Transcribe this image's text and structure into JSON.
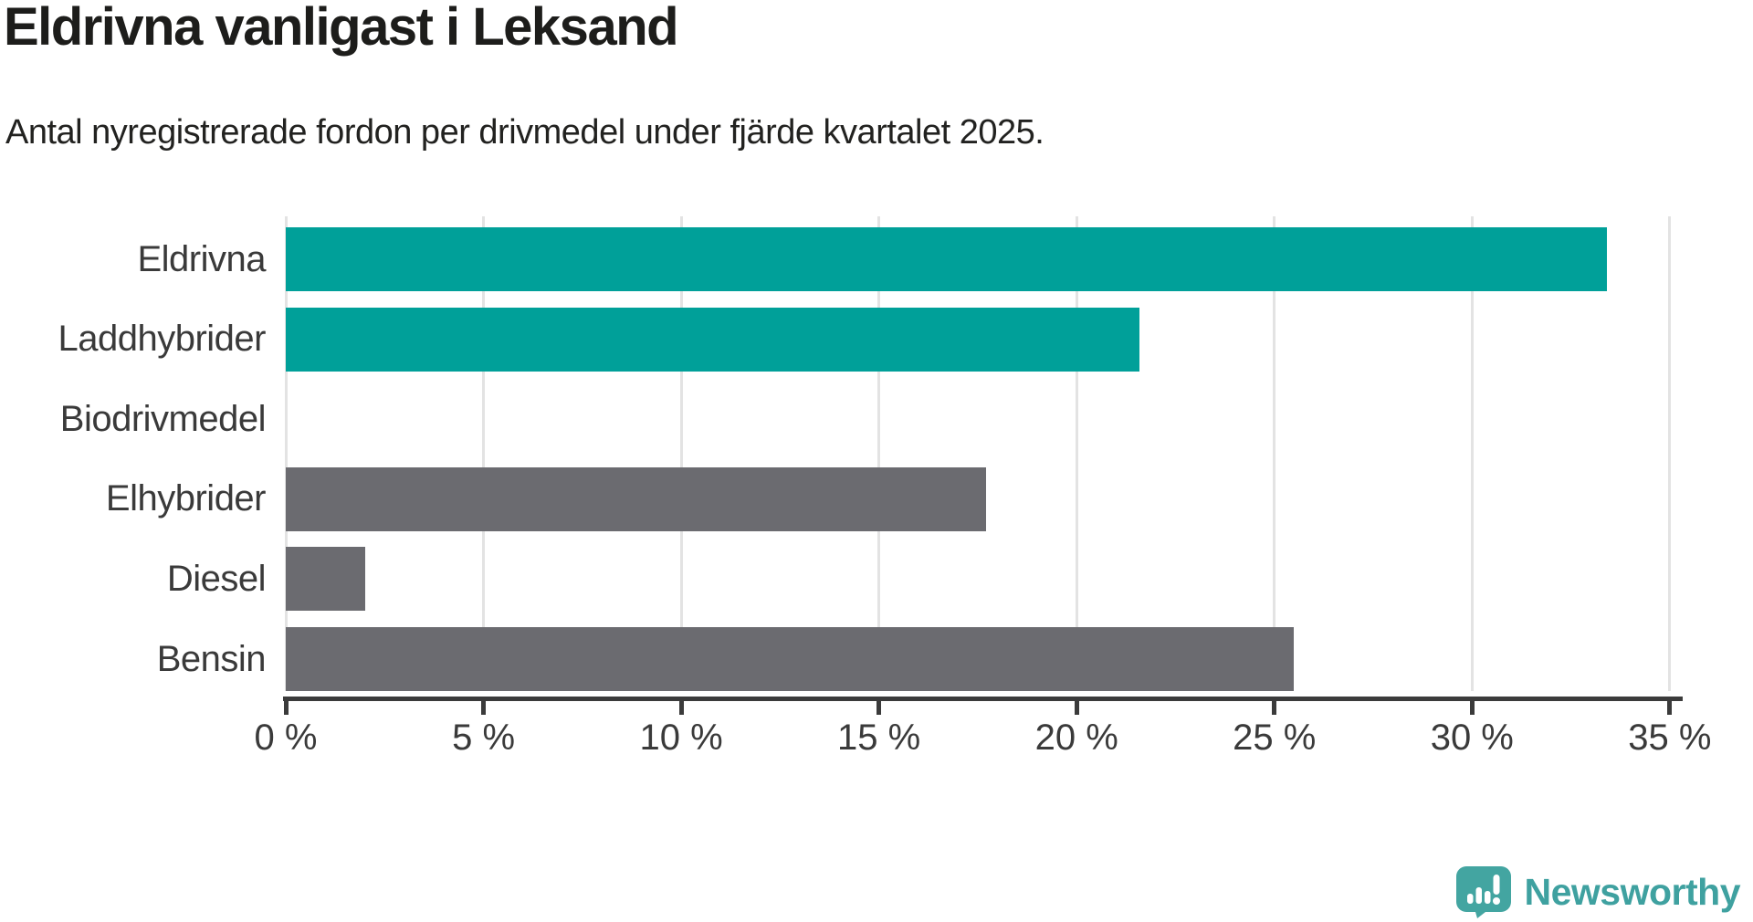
{
  "header": {
    "title": "Eldrivna vanligast i Leksand",
    "subtitle": "Antal nyregistrerade fordon per drivmedel under fjärde kvartalet 2025."
  },
  "chart_data": {
    "type": "bar",
    "orientation": "horizontal",
    "title": "Eldrivna vanligast i Leksand",
    "subtitle": "Antal nyregistrerade fordon per drivmedel under fjärde kvartalet 2025.",
    "categories": [
      "Eldrivna",
      "Laddhybrider",
      "Biodrivmedel",
      "Elhybrider",
      "Diesel",
      "Bensin"
    ],
    "values": [
      33.4,
      21.6,
      0,
      17.7,
      2.0,
      25.5
    ],
    "unit": "%",
    "xlim": [
      0,
      35
    ],
    "x_tick_step": 5,
    "x_tick_labels": [
      "0 %",
      "5 %",
      "10 %",
      "15 %",
      "20 %",
      "25 %",
      "30 %",
      "35 %"
    ],
    "grid": true,
    "legend": false,
    "bar_colors": [
      "#00a099",
      "#00a099",
      "#6b6b70",
      "#6b6b70",
      "#6b6b70",
      "#6b6b70"
    ],
    "highlight_color": "#00a099",
    "default_color": "#6b6b70"
  },
  "branding": {
    "logo_text": "Newsworthy",
    "logo_color": "#3fa1a0",
    "logo_icon": "newsworthy-speech-bubble-bar-chart-icon",
    "logo_icon_color": "#43a5a1"
  },
  "colors": {
    "background": "#ffffff",
    "title_text": "#1d1d1b",
    "axis_text": "#3a3a3a",
    "gridline": "#e3e3e3",
    "axis_line": "#3b3b3b"
  }
}
